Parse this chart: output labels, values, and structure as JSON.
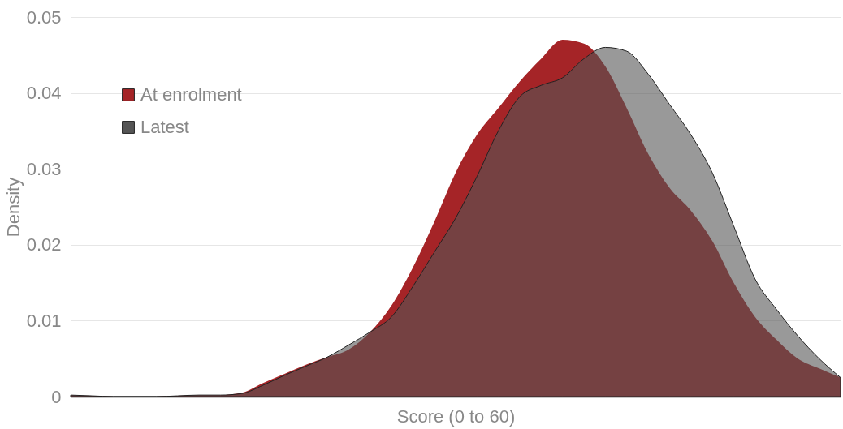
{
  "chart_data": {
    "type": "area",
    "xlabel": "Score (0 to 60)",
    "ylabel": "Density",
    "categories": [
      null,
      null,
      null,
      null,
      null,
      null,
      null,
      null,
      null,
      null,
      null,
      null,
      null,
      null,
      null,
      null,
      null,
      null,
      null,
      null,
      null,
      null,
      null,
      null,
      null,
      null,
      null,
      null,
      null,
      null,
      null,
      null,
      null,
      null,
      null,
      null,
      null
    ],
    "series": [
      {
        "name": "At enrolment",
        "color": "#a52427",
        "values": [
          0.0002,
          0.0001,
          0,
          0,
          0,
          0.0001,
          0.0002,
          0.0002,
          0.0005,
          0.0018,
          0.003,
          0.0042,
          0.0052,
          0.0062,
          0.0085,
          0.012,
          0.017,
          0.023,
          0.0295,
          0.0345,
          0.038,
          0.0415,
          0.0445,
          0.047,
          0.0465,
          0.0435,
          0.038,
          0.032,
          0.0275,
          0.0245,
          0.0205,
          0.015,
          0.0105,
          0.0075,
          0.005,
          0.0037,
          0.0025
        ]
      },
      {
        "name": "Latest",
        "color": "#999999",
        "values": [
          0.0002,
          0.0001,
          0,
          0,
          0,
          0.0001,
          0.0002,
          0.0002,
          0.0004,
          0.0015,
          0.0028,
          0.004,
          0.0052,
          0.0068,
          0.0085,
          0.0105,
          0.0145,
          0.019,
          0.0235,
          0.029,
          0.035,
          0.0395,
          0.041,
          0.042,
          0.0445,
          0.046,
          0.0455,
          0.0425,
          0.0385,
          0.0345,
          0.0295,
          0.0225,
          0.0155,
          0.0115,
          0.008,
          0.005,
          0.0025
        ]
      }
    ],
    "ylim": [
      0,
      0.05
    ],
    "yticks": [
      0,
      0.01,
      0.02,
      0.03,
      0.04,
      0.05
    ],
    "grid": "y",
    "legend": "top left",
    "tick_labels": "y"
  }
}
